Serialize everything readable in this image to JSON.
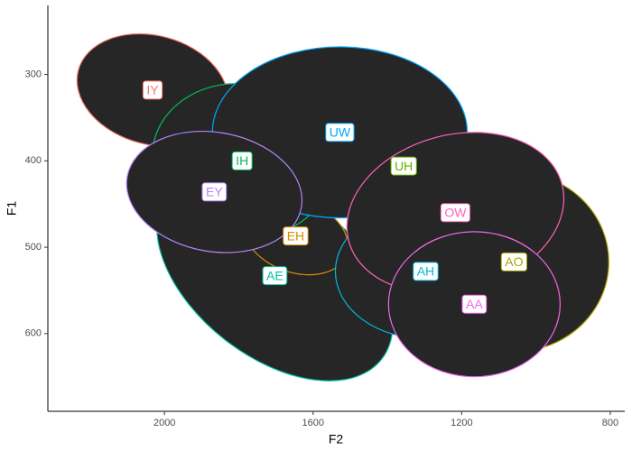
{
  "chart_data": {
    "type": "ellipse",
    "x_label": "F2",
    "y_label": "F1",
    "xlim": [
      2314,
      761
    ],
    "ylim": [
      220,
      690
    ],
    "xticks": [
      2000,
      1600,
      1200,
      800
    ],
    "yticks": [
      300,
      400,
      500,
      600
    ],
    "fill": "#262626",
    "series": [
      {
        "name": "AE",
        "color": "#00C1A7",
        "x": 1703,
        "y": 533,
        "rx": 365,
        "ry": 94,
        "angle": 38
      },
      {
        "name": "EH",
        "color": "#DB8E00",
        "x": 1647,
        "y": 487,
        "rx": 146,
        "ry": 42,
        "angle": 20
      },
      {
        "name": "UH",
        "color": "#64B200",
        "x": 1356,
        "y": 406,
        "rx": 219,
        "ry": 63,
        "angle": 0
      },
      {
        "name": "IY",
        "color": "#F8766D",
        "x": 2032,
        "y": 318,
        "rx": 207,
        "ry": 63,
        "angle": 15
      },
      {
        "name": "IH",
        "color": "#00BD5C",
        "x": 1791,
        "y": 400,
        "rx": 243,
        "ry": 89,
        "angle": 10
      },
      {
        "name": "UW",
        "color": "#00A6FF",
        "x": 1528,
        "y": 367,
        "rx": 343,
        "ry": 99,
        "angle": 0
      },
      {
        "name": "EY",
        "color": "#B385FF",
        "x": 1866,
        "y": 436,
        "rx": 238,
        "ry": 69,
        "angle": 10
      },
      {
        "name": "AO",
        "color": "#AEA200",
        "x": 1059,
        "y": 517,
        "rx": 255,
        "ry": 104,
        "angle": 0
      },
      {
        "name": "AH",
        "color": "#00BADE",
        "x": 1297,
        "y": 528,
        "rx": 243,
        "ry": 78,
        "angle": 0
      },
      {
        "name": "OW",
        "color": "#FF63B6",
        "x": 1217,
        "y": 460,
        "rx": 297,
        "ry": 90,
        "angle": -15
      },
      {
        "name": "AA",
        "color": "#EF67EB",
        "x": 1166,
        "y": 566,
        "rx": 231,
        "ry": 84,
        "angle": 0
      }
    ]
  }
}
